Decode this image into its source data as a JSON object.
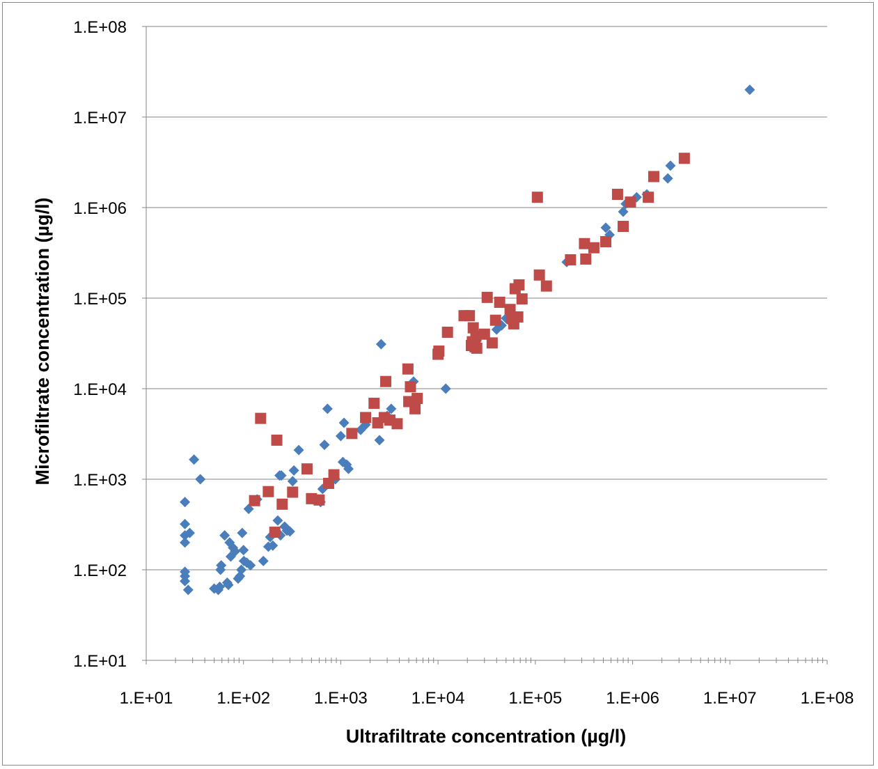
{
  "chart_data": {
    "type": "scatter",
    "xlabel": "Ultrafiltrate concentration (µg/l)",
    "ylabel": "Microfiltrate concentration (µg/l)",
    "xscale": "log",
    "yscale": "log",
    "xlim": [
      10,
      100000000
    ],
    "ylim": [
      10,
      100000000
    ],
    "x_tick_labels": [
      "1.E+01",
      "1.E+02",
      "1.E+03",
      "1.E+04",
      "1.E+05",
      "1.E+06",
      "1.E+07",
      "1.E+08"
    ],
    "y_tick_labels": [
      "1.E+01",
      "1.E+02",
      "1.E+03",
      "1.E+04",
      "1.E+05",
      "1.E+06",
      "1.E+07",
      "1.E+08"
    ],
    "grid": "horizontal major gridlines",
    "legend": "none",
    "series": [
      {
        "marker": "diamond",
        "color": "#4a7ebb",
        "points": [
          [
            25,
            560
          ],
          [
            25,
            320
          ],
          [
            25,
            240
          ],
          [
            25,
            200
          ],
          [
            25,
            95
          ],
          [
            25,
            85
          ],
          [
            25,
            75
          ],
          [
            27,
            60
          ],
          [
            28,
            255
          ],
          [
            31,
            1650
          ],
          [
            36,
            1000
          ],
          [
            50,
            62
          ],
          [
            55,
            60
          ],
          [
            57,
            65
          ],
          [
            58,
            100
          ],
          [
            59,
            112
          ],
          [
            64,
            240
          ],
          [
            68,
            72
          ],
          [
            70,
            68
          ],
          [
            72,
            200
          ],
          [
            74,
            140
          ],
          [
            78,
            175
          ],
          [
            82,
            160
          ],
          [
            88,
            80
          ],
          [
            92,
            85
          ],
          [
            95,
            100
          ],
          [
            97,
            255
          ],
          [
            100,
            165
          ],
          [
            101,
            125
          ],
          [
            108,
            120
          ],
          [
            113,
            470
          ],
          [
            118,
            112
          ],
          [
            138,
            600
          ],
          [
            160,
            125
          ],
          [
            180,
            180
          ],
          [
            188,
            230
          ],
          [
            200,
            185
          ],
          [
            215,
            260
          ],
          [
            225,
            350
          ],
          [
            235,
            1100
          ],
          [
            240,
            240
          ],
          [
            245,
            1100
          ],
          [
            250,
            530
          ],
          [
            265,
            300
          ],
          [
            280,
            270
          ],
          [
            300,
            265
          ],
          [
            320,
            950
          ],
          [
            330,
            1250
          ],
          [
            370,
            2100
          ],
          [
            520,
            600
          ],
          [
            620,
            560
          ],
          [
            650,
            780
          ],
          [
            680,
            2400
          ],
          [
            730,
            6000
          ],
          [
            880,
            1000
          ],
          [
            1000,
            3000
          ],
          [
            1050,
            1550
          ],
          [
            1080,
            4200
          ],
          [
            1150,
            1450
          ],
          [
            1200,
            1300
          ],
          [
            1600,
            3500
          ],
          [
            1800,
            4000
          ],
          [
            2500,
            2700
          ],
          [
            2600,
            31000
          ],
          [
            3000,
            5000
          ],
          [
            3300,
            6000
          ],
          [
            5600,
            12000
          ],
          [
            12000,
            10000
          ],
          [
            40000,
            45000
          ],
          [
            45000,
            50000
          ],
          [
            50000,
            60000
          ],
          [
            55000,
            55000
          ],
          [
            60000,
            65000
          ],
          [
            210000,
            250000
          ],
          [
            530000,
            600000
          ],
          [
            580000,
            500000
          ],
          [
            800000,
            900000
          ],
          [
            850000,
            1100000
          ],
          [
            1100000,
            1300000
          ],
          [
            1400000,
            1400000
          ],
          [
            2300000,
            2100000
          ],
          [
            2450000,
            2900000
          ],
          [
            16000000,
            20000000
          ]
        ]
      },
      {
        "marker": "square",
        "color": "#be4b48",
        "points": [
          [
            130,
            580
          ],
          [
            150,
            4700
          ],
          [
            180,
            730
          ],
          [
            210,
            260
          ],
          [
            220,
            2700
          ],
          [
            250,
            530
          ],
          [
            320,
            720
          ],
          [
            450,
            1300
          ],
          [
            500,
            610
          ],
          [
            600,
            590
          ],
          [
            750,
            900
          ],
          [
            850,
            1120
          ],
          [
            1300,
            3200
          ],
          [
            1800,
            4800
          ],
          [
            2200,
            6900
          ],
          [
            2400,
            4200
          ],
          [
            2800,
            4800
          ],
          [
            2900,
            12000
          ],
          [
            3200,
            4500
          ],
          [
            3800,
            4100
          ],
          [
            4900,
            16500
          ],
          [
            5000,
            7200
          ],
          [
            5200,
            10500
          ],
          [
            5800,
            6000
          ],
          [
            6100,
            7800
          ],
          [
            10000,
            24000
          ],
          [
            10200,
            26000
          ],
          [
            12500,
            42000
          ],
          [
            18500,
            64000
          ],
          [
            21000,
            64000
          ],
          [
            22000,
            30000
          ],
          [
            22500,
            33000
          ],
          [
            23000,
            47000
          ],
          [
            24000,
            29000
          ],
          [
            24500,
            38000
          ],
          [
            25000,
            28000
          ],
          [
            30000,
            40000
          ],
          [
            32000,
            102000
          ],
          [
            36000,
            32000
          ],
          [
            39000,
            57000
          ],
          [
            43000,
            90000
          ],
          [
            55000,
            75000
          ],
          [
            57000,
            60000
          ],
          [
            60000,
            52000
          ],
          [
            62000,
            127000
          ],
          [
            66000,
            62000
          ],
          [
            68000,
            140000
          ],
          [
            73000,
            98000
          ],
          [
            105000,
            1300000
          ],
          [
            110000,
            180000
          ],
          [
            130000,
            136000
          ],
          [
            230000,
            265000
          ],
          [
            320000,
            400000
          ],
          [
            330000,
            270000
          ],
          [
            400000,
            360000
          ],
          [
            530000,
            420000
          ],
          [
            700000,
            1400000
          ],
          [
            800000,
            620000
          ],
          [
            950000,
            1150000
          ],
          [
            1450000,
            1300000
          ],
          [
            1650000,
            2200000
          ],
          [
            3400000,
            3500000
          ]
        ]
      }
    ]
  }
}
